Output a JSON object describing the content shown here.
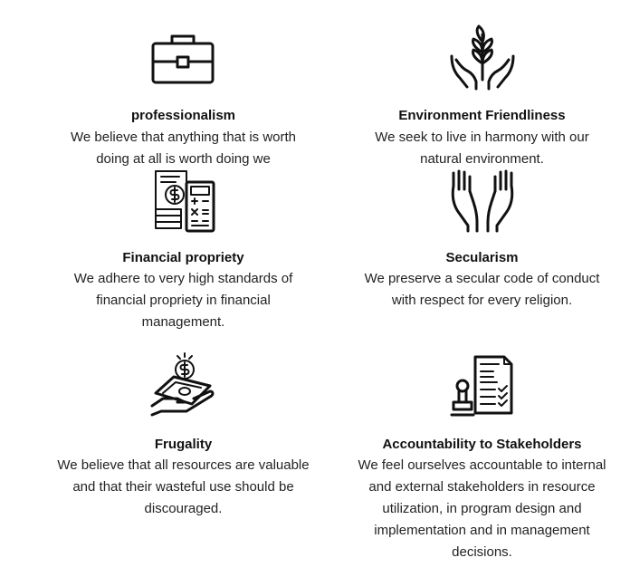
{
  "values": [
    {
      "title": "professionalism",
      "desc_lines": [
        "We believe that anything that is worth",
        "doing at all is worth doing we"
      ],
      "icon": "briefcase-icon"
    },
    {
      "title": "Environment Friendliness",
      "desc_lines": [
        "We seek to live in harmony with our",
        "natural environment."
      ],
      "icon": "hands-plant-icon"
    },
    {
      "title": "Financial propriety",
      "desc_lines": [
        "We adhere to very high standards of",
        "financial propriety in financial",
        "management."
      ],
      "icon": "finance-calculator-icon"
    },
    {
      "title": "Secularism",
      "desc_lines": [
        "We preserve a secular code of conduct",
        "with respect for every religion."
      ],
      "icon": "open-hands-icon"
    },
    {
      "title": "Frugality",
      "desc_lines": [
        "We believe that all resources are valuable",
        "and that their wasteful use should be",
        "discouraged."
      ],
      "icon": "money-hand-icon"
    },
    {
      "title": "Accountability to Stakeholders",
      "desc_lines": [
        "We feel ourselves accountable to internal",
        "and external stakeholders in resource",
        "utilization, in program design and",
        "implementation and in management",
        "decisions."
      ],
      "icon": "document-stamp-icon"
    }
  ]
}
